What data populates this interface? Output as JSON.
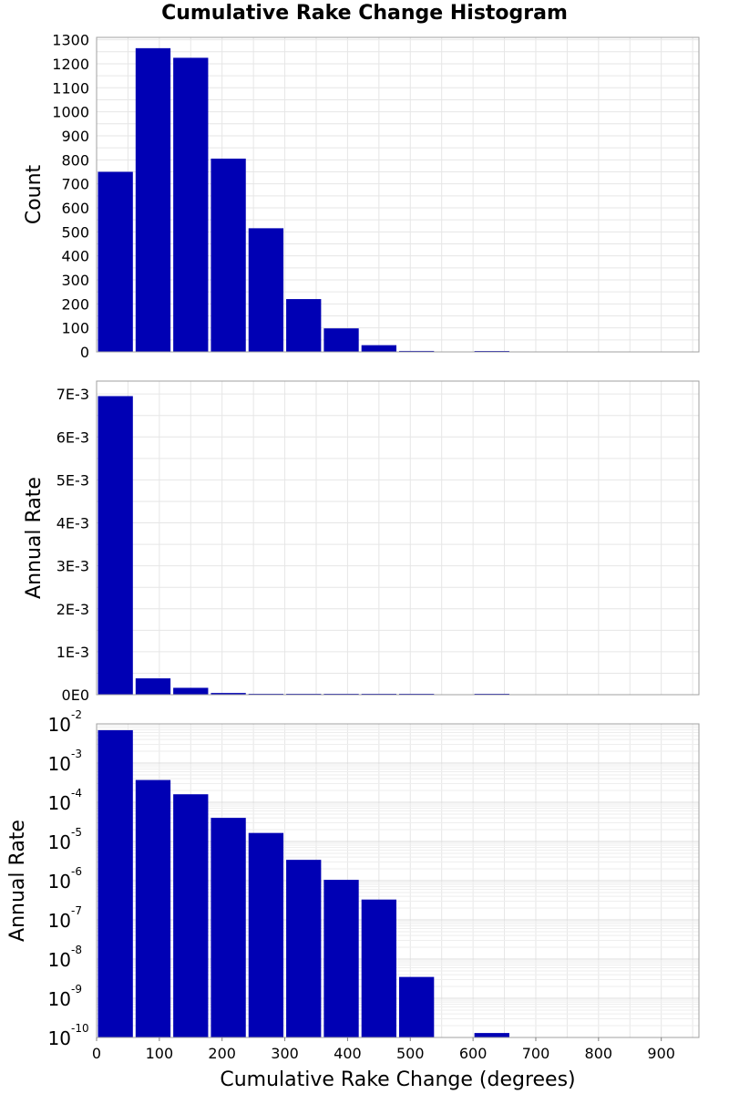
{
  "chart_data": {
    "type": "bar",
    "title": "Cumulative Rake Change Histogram",
    "xlabel": "Cumulative Rake Change (degrees)",
    "xlim": [
      0,
      960
    ],
    "xticks": [
      "0",
      "100",
      "200",
      "300",
      "400",
      "500",
      "600",
      "700",
      "800",
      "900"
    ],
    "bin_width": 60,
    "bar_color": "#0000b4",
    "grid": true,
    "panels": [
      {
        "ylabel": "Count",
        "scale": "linear",
        "ylim": [
          0,
          1310
        ],
        "yticks": [
          "0",
          "100",
          "200",
          "300",
          "400",
          "500",
          "600",
          "700",
          "800",
          "900",
          "1000",
          "1100",
          "1200",
          "1300"
        ],
        "bins": [
          {
            "x": 0,
            "y": 750
          },
          {
            "x": 60,
            "y": 1265
          },
          {
            "x": 120,
            "y": 1225
          },
          {
            "x": 180,
            "y": 805
          },
          {
            "x": 240,
            "y": 515
          },
          {
            "x": 300,
            "y": 220
          },
          {
            "x": 360,
            "y": 98
          },
          {
            "x": 420,
            "y": 28
          },
          {
            "x": 480,
            "y": 4
          },
          {
            "x": 540,
            "y": 0
          },
          {
            "x": 600,
            "y": 1
          }
        ]
      },
      {
        "ylabel": "Annual Rate",
        "scale": "linear",
        "ylim": [
          0,
          0.0073
        ],
        "yticks": [
          "0E0",
          "1E-3",
          "2E-3",
          "3E-3",
          "4E-3",
          "5E-3",
          "6E-3",
          "7E-3"
        ],
        "bins": [
          {
            "x": 0,
            "y": 0.00695
          },
          {
            "x": 60,
            "y": 0.00038
          },
          {
            "x": 120,
            "y": 0.00016
          },
          {
            "x": 180,
            "y": 4e-05
          },
          {
            "x": 240,
            "y": 1.6e-05
          },
          {
            "x": 300,
            "y": 3.3e-06
          },
          {
            "x": 360,
            "y": 1e-06
          },
          {
            "x": 420,
            "y": 3.3e-07
          },
          {
            "x": 480,
            "y": 3.5e-09
          },
          {
            "x": 540,
            "y": 0
          },
          {
            "x": 600,
            "y": 1.3e-10
          }
        ]
      },
      {
        "ylabel": "Annual Rate",
        "scale": "log",
        "ylim": [
          1e-10,
          0.01
        ],
        "yticks_base": "10",
        "yticks_exp": [
          "-2",
          "-3",
          "-4",
          "-5",
          "-6",
          "-7",
          "-8",
          "-9",
          "-10"
        ],
        "bins": [
          {
            "x": 0,
            "y": 0.0069
          },
          {
            "x": 60,
            "y": 0.00037
          },
          {
            "x": 120,
            "y": 0.00016
          },
          {
            "x": 180,
            "y": 4e-05
          },
          {
            "x": 240,
            "y": 1.65e-05
          },
          {
            "x": 300,
            "y": 3.4e-06
          },
          {
            "x": 360,
            "y": 1.05e-06
          },
          {
            "x": 420,
            "y": 3.3e-07
          },
          {
            "x": 480,
            "y": 3.5e-09
          },
          {
            "x": 540,
            "y": 0
          },
          {
            "x": 600,
            "y": 1.3e-10
          }
        ]
      }
    ]
  }
}
